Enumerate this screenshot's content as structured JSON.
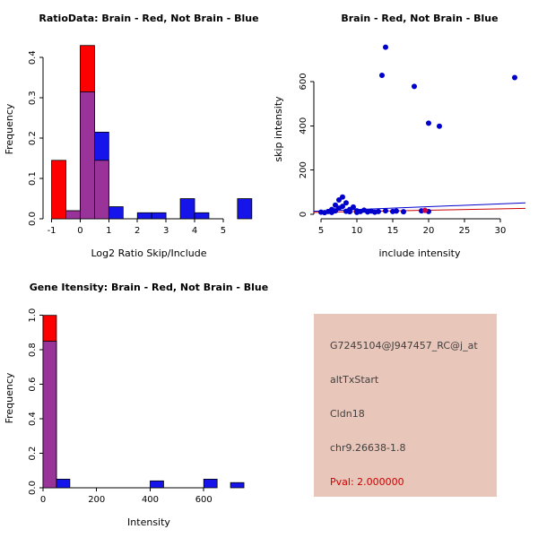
{
  "colors": {
    "red": "#FF0000",
    "blue": "#1414EB",
    "overlap_purple": "#993399",
    "scatter_blue": "#0000CD",
    "scatter_red_point": "#CC0044",
    "line_blue": "#0000CD",
    "line_red": "#CC0000",
    "info_bg": "#E9C6BA",
    "pval_red": "#CC0000"
  },
  "chart_data": [
    {
      "type": "bar",
      "title": "RatioData: Brain - Red, Not Brain - Blue",
      "xlabel": "Log2 Ratio Skip/Include",
      "ylabel": "Frequency",
      "xlim": [
        -1.3,
        6.1
      ],
      "ylim": [
        0,
        0.445
      ],
      "xticks": [
        -1,
        0,
        1,
        2,
        3,
        4,
        5
      ],
      "yticks": [
        0,
        0.1,
        0.2,
        0.3,
        0.4
      ],
      "ytick_labels": [
        "0.0",
        "0.1",
        "0.2",
        "0.3",
        "0.4"
      ],
      "bin_width": 0.5,
      "grid": false,
      "legend": "Brain = red, Not Brain = blue, overlap = purple",
      "series_colors": {
        "red": "#FF0000",
        "blue": "#1414EB",
        "overlap": "#993399"
      },
      "bars": [
        {
          "x0": -1.0,
          "red": 0.145,
          "blue": 0
        },
        {
          "x0": -0.5,
          "red": 0.02,
          "blue": 0.02
        },
        {
          "x0": 0.0,
          "red": 0.43,
          "blue": 0.315
        },
        {
          "x0": 0.5,
          "red": 0.145,
          "blue": 0.215
        },
        {
          "x0": 1.0,
          "red": 0,
          "blue": 0.03
        },
        {
          "x0": 2.0,
          "red": 0,
          "blue": 0.015
        },
        {
          "x0": 2.5,
          "red": 0,
          "blue": 0.015
        },
        {
          "x0": 3.5,
          "red": 0,
          "blue": 0.05
        },
        {
          "x0": 4.0,
          "red": 0,
          "blue": 0.015
        },
        {
          "x0": 5.5,
          "red": 0,
          "blue": 0.05
        }
      ]
    },
    {
      "type": "scatter",
      "title": "Brain - Red, Not Brain - Blue",
      "xlabel": "include intensity",
      "ylabel": "skip intensity",
      "xlim": [
        4,
        33.5
      ],
      "ylim": [
        -20,
        790
      ],
      "xticks": [
        5,
        10,
        15,
        20,
        25,
        30
      ],
      "yticks": [
        0,
        200,
        400,
        600
      ],
      "ytick_labels": [
        "0",
        "200",
        "400",
        "600"
      ],
      "grid": false,
      "point_color": "#0000CD",
      "red_point_color": "#CC0044",
      "points": [
        [
          5,
          10
        ],
        [
          5.5,
          8
        ],
        [
          6,
          13
        ],
        [
          6.5,
          22
        ],
        [
          6.5,
          9
        ],
        [
          7,
          16
        ],
        [
          7,
          42
        ],
        [
          7.5,
          65
        ],
        [
          7.5,
          28
        ],
        [
          8,
          78
        ],
        [
          8,
          36
        ],
        [
          8.5,
          52
        ],
        [
          8.5,
          14
        ],
        [
          9,
          22
        ],
        [
          9,
          12
        ],
        [
          9.5,
          33
        ],
        [
          10,
          16
        ],
        [
          10,
          9
        ],
        [
          10.5,
          13
        ],
        [
          11,
          19
        ],
        [
          11.5,
          11
        ],
        [
          12,
          15
        ],
        [
          12.5,
          10
        ],
        [
          13,
          13
        ],
        [
          14,
          16
        ],
        [
          15,
          13
        ],
        [
          15.5,
          15
        ],
        [
          16.5,
          12
        ],
        [
          19,
          16
        ],
        [
          20,
          13
        ],
        [
          13.5,
          628
        ],
        [
          14,
          755
        ],
        [
          18,
          578
        ],
        [
          20,
          412
        ],
        [
          21.5,
          398
        ],
        [
          32,
          618
        ]
      ],
      "red_points": [
        [
          19.5,
          18
        ]
      ],
      "lines": [
        {
          "color": "#0000CD",
          "from": [
            4,
            14
          ],
          "to": [
            33.5,
            52
          ]
        },
        {
          "color": "#CC0000",
          "from": [
            4,
            9
          ],
          "to": [
            33.5,
            27
          ]
        }
      ]
    },
    {
      "type": "bar",
      "title": "Gene Itensity: Brain - Red, Not Brain - Blue",
      "xlabel": "Intensity",
      "ylabel": "Frequency",
      "xlim": [
        0,
        790
      ],
      "ylim": [
        0,
        1.04
      ],
      "xticks": [
        0,
        200,
        400,
        600
      ],
      "yticks": [
        0,
        0.2,
        0.4,
        0.6,
        0.8,
        1.0
      ],
      "ytick_labels": [
        "0.0",
        "0.2",
        "0.4",
        "0.6",
        "0.8",
        "1.0"
      ],
      "bin_width": 50,
      "grid": false,
      "series_colors": {
        "red": "#FF0000",
        "blue": "#1414EB",
        "overlap": "#993399"
      },
      "bars": [
        {
          "x0": 0,
          "red": 1.0,
          "blue": 0.85
        },
        {
          "x0": 50,
          "red": 0,
          "blue": 0.05
        },
        {
          "x0": 400,
          "red": 0,
          "blue": 0.04
        },
        {
          "x0": 600,
          "red": 0,
          "blue": 0.05
        },
        {
          "x0": 700,
          "red": 0,
          "blue": 0.03
        }
      ]
    }
  ],
  "info_box": {
    "bg": "#E9C6BA",
    "lines": [
      {
        "text": "G7245104@J947457_RC@j_at",
        "color": "#404040"
      },
      {
        "text": "altTxStart",
        "color": "#404040"
      },
      {
        "text": "Cldn18",
        "color": "#404040"
      },
      {
        "text": "chr9.26638-1.8",
        "color": "#404040"
      },
      {
        "text": "Pval: 2.000000",
        "color": "#CC0000"
      }
    ]
  }
}
